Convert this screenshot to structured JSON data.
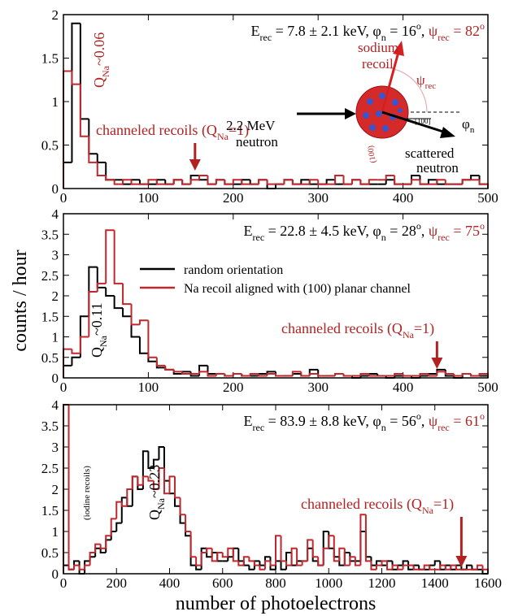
{
  "chart_data": [
    {
      "type": "histogram",
      "stats": [
        "E",
        "rec",
        " = 7.8 ± 2.1 keV, φ",
        "n",
        " = 16",
        "o",
        ", ",
        "ψ",
        "rec",
        " = 82",
        "o"
      ],
      "q_label": [
        "Q",
        "Na",
        "~0.06"
      ],
      "channeled_label": [
        "channeled recoils (Q",
        "Na",
        "=1)"
      ],
      "inset": {
        "sodium": "sodium",
        "recoil": "recoil",
        "psi": "ψ",
        "psi_sub": "rec",
        "energy": "2.2 MeV",
        "neutron": "neutron",
        "scattered": "scattered",
        "scattered_neutron": "neutron",
        "direction": "[100]",
        "plane": "(100)",
        "phi": "φ",
        "phi_sub": "n"
      },
      "bins": [
        0,
        10,
        20,
        30,
        40,
        50,
        60,
        70,
        80,
        90,
        100,
        110,
        120,
        130,
        140,
        150,
        160,
        170,
        180,
        190,
        200,
        210,
        220,
        230,
        240,
        250,
        260,
        270,
        280,
        290,
        300,
        310,
        320,
        330,
        340,
        350,
        360,
        370,
        380,
        390,
        400,
        410,
        420,
        430,
        440,
        450,
        460,
        470,
        480,
        490,
        500
      ],
      "series": [
        {
          "name": "random orientation",
          "color": "#000000",
          "values": [
            0.3,
            1.9,
            0.8,
            0.4,
            0.3,
            0.1,
            0.1,
            0.05,
            0.1,
            0.05,
            0.05,
            0.1,
            0.05,
            0.1,
            0.05,
            0.15,
            0.1,
            0.05,
            0.1,
            0.05,
            0.05,
            0.1,
            0.05,
            0.1,
            0,
            0.05,
            0.1,
            0.05,
            0.1,
            0.05,
            0.05,
            0.1,
            0.05,
            0.05,
            0.1,
            0.05,
            0.05,
            0.05,
            0.1,
            0.05,
            0.05,
            0.15,
            0.05,
            0.1,
            0.05,
            0.05,
            0.05,
            0.1,
            0.15,
            0.05
          ]
        },
        {
          "name": "Na recoil aligned with (100) planar channel",
          "color": "#c0282d",
          "values": [
            1.35,
            1.2,
            0.6,
            0.3,
            0.15,
            0.1,
            0.05,
            0.1,
            0.05,
            0.05,
            0.1,
            0.05,
            0.05,
            0.1,
            0.05,
            0.1,
            0.15,
            0.05,
            0.1,
            0.05,
            0.1,
            0.05,
            0.05,
            0.1,
            0.05,
            0.05,
            0.1,
            0.05,
            0.05,
            0.1,
            0.05,
            0.05,
            0.15,
            0.05,
            0.1,
            0.05,
            0.1,
            0.1,
            0.15,
            0.05,
            0.05,
            0.1,
            0.05,
            0.05,
            0.1,
            0.05,
            0.05,
            0.1,
            0.1,
            0.05
          ]
        }
      ],
      "xlim": [
        0,
        500
      ],
      "xticks": [
        0,
        100,
        200,
        300,
        400,
        500
      ],
      "ylim": [
        0,
        2
      ],
      "yticks": [
        0,
        0.5,
        1,
        1.5,
        2
      ]
    },
    {
      "type": "histogram",
      "stats": [
        "E",
        "rec",
        " = 22.8 ± 4.5 keV, φ",
        "n",
        " = 28",
        "o",
        ", ",
        "ψ",
        "rec",
        " = 75",
        "o"
      ],
      "q_label": [
        "Q",
        "Na",
        "~0.11"
      ],
      "channeled_label": [
        "channeled recoils (Q",
        "Na",
        "=1)"
      ],
      "ylabel": "counts / hour",
      "bins": [
        0,
        10,
        20,
        30,
        40,
        50,
        60,
        70,
        80,
        90,
        100,
        110,
        120,
        130,
        140,
        150,
        160,
        170,
        180,
        190,
        200,
        210,
        220,
        230,
        240,
        250,
        260,
        270,
        280,
        290,
        300,
        310,
        320,
        330,
        340,
        350,
        360,
        370,
        380,
        390,
        400,
        410,
        420,
        430,
        440,
        450,
        460,
        470,
        480,
        490,
        500
      ],
      "series": [
        {
          "name": "random orientation",
          "color": "#000000",
          "values": [
            0.3,
            0.5,
            1.5,
            2.7,
            2.2,
            2.0,
            1.7,
            1.5,
            1.0,
            0.6,
            0.4,
            0.25,
            0.2,
            0.1,
            0.15,
            0.05,
            0.3,
            0.1,
            0.1,
            0.05,
            0.1,
            0.05,
            0.05,
            0.1,
            0.15,
            0.05,
            0.05,
            0.1,
            0.05,
            0.2,
            0.05,
            0.05,
            0.1,
            0.05,
            0,
            0.05,
            0.1,
            0.05,
            0,
            0.05,
            0.05,
            0,
            0.05,
            0.1,
            0.2,
            0.05,
            0,
            0.1,
            0.05,
            0.05
          ]
        },
        {
          "name": "Na recoil aligned with (100) planar channel",
          "color": "#c0282d",
          "values": [
            0.7,
            0.6,
            1.0,
            2.1,
            2.3,
            3.6,
            2.3,
            1.8,
            1.3,
            1.4,
            0.5,
            0.3,
            0.2,
            0.15,
            0.1,
            0.1,
            0.15,
            0.05,
            0.1,
            0.05,
            0.1,
            0.05,
            0.1,
            0.05,
            0.1,
            0.05,
            0.05,
            0.15,
            0.05,
            0.1,
            0.05,
            0.05,
            0.1,
            0.05,
            0.05,
            0.1,
            0.05,
            0.05,
            0.05,
            0.1,
            0.05,
            0.05,
            0.1,
            0.05,
            0.15,
            0.1,
            0.05,
            0.1,
            0.05,
            0.1
          ]
        }
      ],
      "xlim": [
        0,
        500
      ],
      "xticks": [
        0,
        100,
        200,
        300,
        400,
        500
      ],
      "ylim": [
        0,
        4
      ],
      "yticks": [
        0,
        0.5,
        1,
        1.5,
        2,
        2.5,
        3,
        3.5,
        4
      ],
      "legend": "upper center"
    },
    {
      "type": "histogram",
      "stats": [
        "E",
        "rec",
        " = 83.9 ± 8.8 keV, φ",
        "n",
        " = 56",
        "o",
        ", ",
        "ψ",
        "rec",
        " = 61",
        "o"
      ],
      "q_label": [
        "Q",
        "Na",
        "~0.23"
      ],
      "channeled_label": [
        "channeled recoils (Q",
        "Na",
        "=1)"
      ],
      "iodine_label": "(iodine recoils)",
      "xlabel": "number of photoelectrons",
      "bins": [
        0,
        20,
        40,
        60,
        80,
        100,
        120,
        140,
        160,
        180,
        200,
        220,
        240,
        260,
        280,
        300,
        320,
        340,
        360,
        380,
        400,
        420,
        440,
        460,
        480,
        500,
        520,
        540,
        560,
        580,
        600,
        620,
        640,
        660,
        680,
        700,
        720,
        740,
        760,
        780,
        800,
        820,
        840,
        860,
        880,
        900,
        920,
        940,
        960,
        980,
        1000,
        1020,
        1040,
        1060,
        1080,
        1100,
        1120,
        1140,
        1160,
        1180,
        1200,
        1220,
        1240,
        1260,
        1280,
        1300,
        1320,
        1340,
        1360,
        1380,
        1400,
        1420,
        1440,
        1460,
        1480,
        1500,
        1520,
        1540,
        1560,
        1580,
        1600
      ],
      "series": [
        {
          "name": "random orientation",
          "color": "#000000",
          "values": [
            0.2,
            0.1,
            0.3,
            0.0,
            0.3,
            0.4,
            0.6,
            0.5,
            0.8,
            1.0,
            1.2,
            1.8,
            1.6,
            2.3,
            2.0,
            2.9,
            2.5,
            2.7,
            3.0,
            2.2,
            1.9,
            1.6,
            1.2,
            0.9,
            0.2,
            0.1,
            0.6,
            0.4,
            0.5,
            0.3,
            0.3,
            0.4,
            0.6,
            0.3,
            0.2,
            0.1,
            0.3,
            0.2,
            0.4,
            0.1,
            0.3,
            0.1,
            0.5,
            0.2,
            0.3,
            0.3,
            0.6,
            0.3,
            0.2,
            1.0,
            0.6,
            0.4,
            0.2,
            0.5,
            0.3,
            0.3,
            1.0,
            0.4,
            0.2,
            0.3,
            0.2,
            0.3,
            0.1,
            0.2,
            0.3,
            0.1,
            0.2,
            0.1,
            0.1,
            0.2,
            0.3,
            0.1,
            0.2,
            0.1,
            0.2,
            0.1,
            0.2,
            0.1,
            0.1,
            0.0
          ]
        },
        {
          "name": "Na recoil aligned with (100) planar channel",
          "color": "#c0282d",
          "values": [
            4.0,
            0.1,
            0.2,
            0.1,
            0.2,
            0.5,
            0.7,
            0.6,
            0.9,
            1.3,
            1.7,
            1.6,
            2.0,
            2.3,
            2.1,
            2.3,
            2.2,
            2.0,
            2.5,
            1.9,
            2.3,
            1.8,
            1.4,
            1.0,
            0.4,
            0.2,
            0.5,
            0.6,
            0.3,
            0.5,
            0.4,
            0.6,
            0.3,
            0.2,
            0.4,
            0.3,
            0.2,
            0.1,
            0.3,
            0.2,
            0.9,
            0.3,
            0.2,
            0.6,
            0.2,
            0.3,
            0.8,
            0.4,
            0.2,
            0.6,
            0.9,
            0.3,
            0.6,
            0.2,
            0.4,
            0.2,
            1.4,
            0.3,
            0.1,
            0.2,
            0.3,
            0.1,
            0.2,
            0.1,
            0.2,
            0.2,
            0.1,
            0.1,
            0.2,
            0.1,
            0.1,
            0.2,
            0.1,
            0.2,
            0.1,
            0.1,
            0.1,
            0.1,
            0.2,
            0.1
          ]
        }
      ],
      "xlim": [
        0,
        1600
      ],
      "xticks": [
        0,
        200,
        400,
        600,
        800,
        1000,
        1200,
        1400,
        1600
      ],
      "ylim": [
        0,
        4
      ],
      "yticks": [
        0,
        0.5,
        1,
        1.5,
        2,
        2.5,
        3,
        3.5,
        4
      ]
    }
  ]
}
